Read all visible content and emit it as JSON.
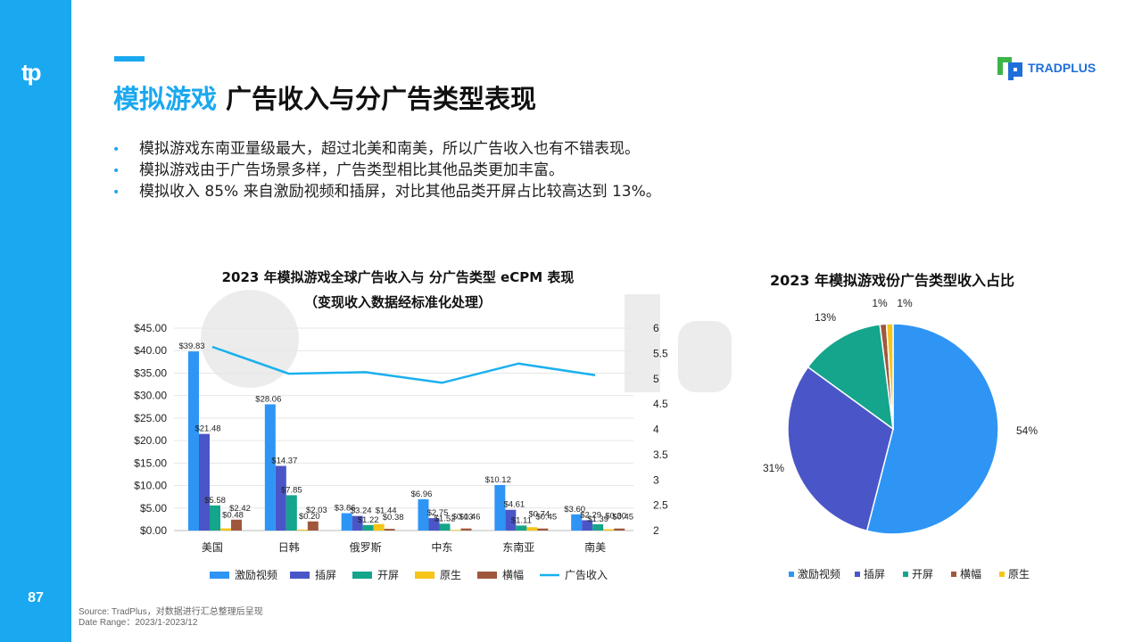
{
  "page": {
    "number": "87",
    "title_highlight": "模拟游戏",
    "title_rest": "广告收入与分广告类型表现",
    "brand": "TRADPLUS",
    "source_line1": "Source: TradPlus，对数据进行汇总整理后呈现",
    "source_line2": "Date Range：2023/1-2023/12"
  },
  "bullets": [
    "模拟游戏东南亚量级最大，超过北美和南美，所以广告收入也有不错表现。",
    "模拟游戏由于广告场景多样，广告类型相比其他品类更加丰富。",
    "模拟收入 85% 来自激励视频和插屏，对比其他品类开屏占比较高达到 13%。"
  ],
  "colors": {
    "accent": "#1aa8f0",
    "激励视频": "#2e95f5",
    "插屏": "#4a56c8",
    "开屏": "#14a58c",
    "原生": "#f5c518",
    "横幅": "#a0583c",
    "广告收入": "#1ab0ee"
  },
  "chart_data": [
    {
      "type": "bar",
      "title": "2023 年模拟游戏全球广告收入与 分广告类型 eCPM 表现",
      "subtitle": "（变现收入数据经标准化处理）",
      "categories": [
        "美国",
        "日韩",
        "俄罗斯",
        "中东",
        "东南亚",
        "南美"
      ],
      "ylim": [
        0,
        45
      ],
      "yticks": [
        "$0.00",
        "$5.00",
        "$10.00",
        "$15.00",
        "$20.00",
        "$25.00",
        "$30.00",
        "$35.00",
        "$40.00",
        "$45.00"
      ],
      "y2lim": [
        2,
        6
      ],
      "y2ticks": [
        "2",
        "2.5",
        "3",
        "3.5",
        "4",
        "4.5",
        "5",
        "5.5",
        "6"
      ],
      "series": [
        {
          "name": "激励视频",
          "values": [
            39.83,
            28.06,
            3.86,
            6.96,
            10.12,
            3.6
          ],
          "labels": [
            "$39.83",
            "$28.06",
            "$3.86",
            "$6.96",
            "$10.12",
            "$3.60"
          ]
        },
        {
          "name": "插屏",
          "values": [
            21.48,
            14.37,
            3.24,
            2.75,
            4.61,
            2.29
          ],
          "labels": [
            "$21.48",
            "$14.37",
            "$3.24",
            "$2.75",
            "$4.61",
            "$2.29"
          ]
        },
        {
          "name": "开屏",
          "values": [
            5.58,
            7.85,
            1.22,
            1.52,
            1.11,
            1.39
          ],
          "labels": [
            "$5.58",
            "$7.85",
            "$1.22",
            "$1.52",
            "$1.11",
            "$1.39"
          ]
        },
        {
          "name": "原生",
          "values": [
            0.48,
            0.2,
            1.44,
            0.13,
            0.74,
            0.3
          ],
          "labels": [
            "$0.48",
            "$0.20",
            "$1.44",
            "$0.13",
            "$0.74",
            "$0.30"
          ]
        },
        {
          "name": "横幅",
          "values": [
            2.42,
            2.03,
            0.38,
            0.46,
            0.45,
            0.45
          ],
          "labels": [
            "$2.42",
            "$2.03",
            "$0.38",
            "$0.46",
            "$0.45",
            "$0.45"
          ]
        }
      ],
      "line_series": {
        "name": "广告收入",
        "axis": "secondary",
        "values": [
          5.63,
          5.1,
          5.13,
          4.92,
          5.3,
          5.07
        ]
      },
      "legend": [
        "激励视频",
        "插屏",
        "开屏",
        "原生",
        "横幅",
        "广告收入"
      ],
      "legend_position": "bottom"
    },
    {
      "type": "pie",
      "title": "2023 年模拟游戏份广告类型收入占比",
      "slices": [
        {
          "name": "激励视频",
          "value": 54,
          "label": "54%"
        },
        {
          "name": "插屏",
          "value": 31,
          "label": "31%"
        },
        {
          "name": "开屏",
          "value": 13,
          "label": "13%"
        },
        {
          "name": "横幅",
          "value": 1,
          "label": "1%"
        },
        {
          "name": "原生",
          "value": 1,
          "label": "1%"
        }
      ],
      "legend": [
        "激励视频",
        "插屏",
        "开屏",
        "横幅",
        "原生"
      ],
      "legend_position": "bottom"
    }
  ]
}
